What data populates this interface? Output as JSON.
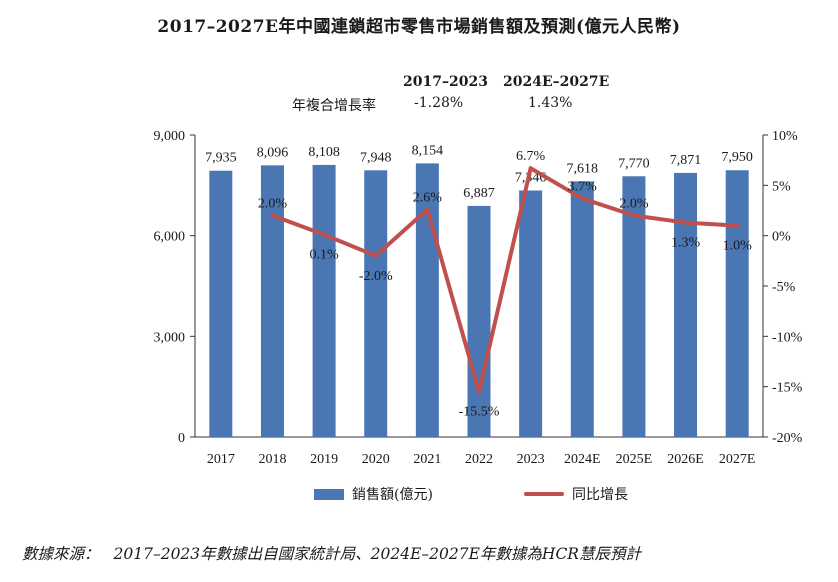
{
  "chart_data": {
    "type": "bar+line",
    "title": "2017–2027E年中國連鎖超市零售市場銷售額及預測(億元人民幣)",
    "categories": [
      "2017",
      "2018",
      "2019",
      "2020",
      "2021",
      "2022",
      "2023",
      "2024E",
      "2025E",
      "2026E",
      "2027E"
    ],
    "series": [
      {
        "name": "銷售額(億元)",
        "type": "bar",
        "axis": "left",
        "color": "#4a77b4",
        "values": [
          7935,
          8096,
          8108,
          7948,
          8154,
          6887,
          7346,
          7618,
          7770,
          7871,
          7950
        ],
        "labels": [
          "7,935",
          "8,096",
          "8,108",
          "7,948",
          "8,154",
          "6,887",
          "7,346",
          "7,618",
          "7,770",
          "7,871",
          "7,950"
        ]
      },
      {
        "name": "同比增長",
        "type": "line",
        "axis": "right",
        "color": "#c0504d",
        "values": [
          null,
          2.0,
          0.1,
          -2.0,
          2.6,
          -15.5,
          6.7,
          3.7,
          2.0,
          1.3,
          1.0
        ],
        "labels": [
          "",
          "2.0%",
          "0.1%",
          "-2.0%",
          "2.6%",
          "-15.5%",
          "6.7%",
          "3.7%",
          "2.0%",
          "1.3%",
          "1.0%"
        ]
      }
    ],
    "left_axis": {
      "ylim": [
        0,
        9000
      ],
      "ticks": [
        "0",
        "3,000",
        "6,000",
        "9,000"
      ]
    },
    "right_axis": {
      "ylim": [
        -20,
        10
      ],
      "ticks": [
        "10%",
        "5%",
        "0%",
        "-5%",
        "-10%",
        "-15%",
        "-20%"
      ]
    },
    "cagr": {
      "label": "年複合增長率",
      "periods": [
        {
          "period": "2017–2023",
          "value": "-1.28%"
        },
        {
          "period": "2024E–2027E",
          "value": "1.43%"
        }
      ]
    },
    "legend_placement": "bottom",
    "grid": false
  },
  "source": {
    "label": "數據來源：",
    "text": "2017–2023年數據出自國家統計局、2024E–2027E年數據為HCR慧辰預計"
  }
}
